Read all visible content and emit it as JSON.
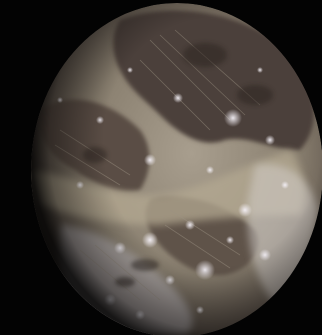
{
  "image": {
    "subject": "moon-globe",
    "background_color": "#030303",
    "colors": {
      "bright_terrain": "#b9ad98",
      "dark_terrain": "#4a3f38",
      "frost_highlight": "#e8e4ea",
      "shadow_limb": "#120f0d"
    }
  }
}
